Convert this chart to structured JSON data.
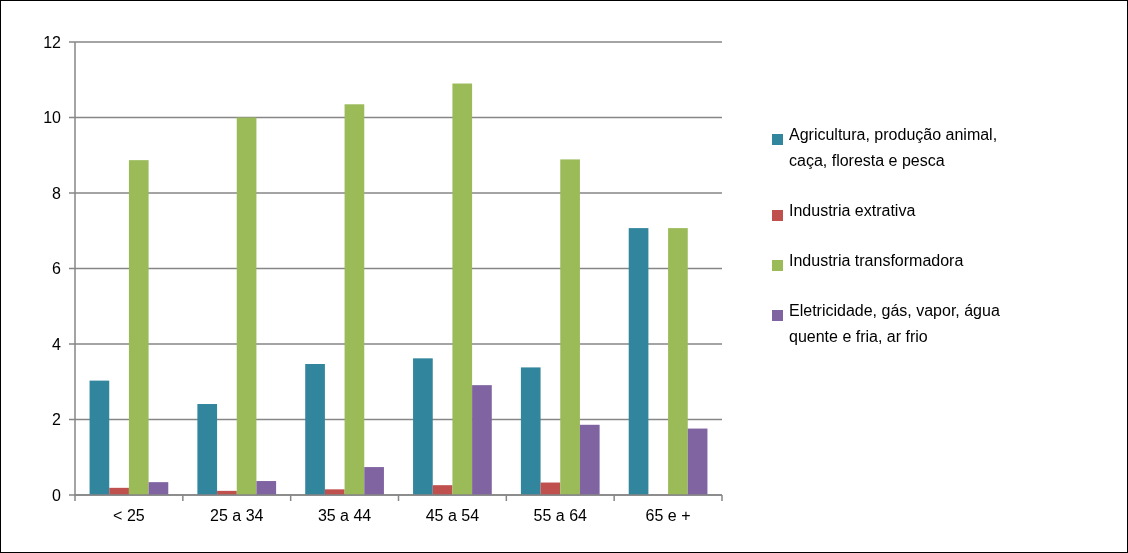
{
  "chart_data": {
    "type": "bar",
    "categories": [
      "< 25",
      "25 a 34",
      "35 a 44",
      "45 a 54",
      "55 a 64",
      "65 e +"
    ],
    "series": [
      {
        "name": "Agricultura, produção animal, caça, floresta e pesca",
        "color": "#31859c",
        "values": [
          3.03,
          2.41,
          3.47,
          3.62,
          3.38,
          7.07
        ]
      },
      {
        "name": "Industria extrativa",
        "color": "#c0504d",
        "values": [
          0.19,
          0.11,
          0.15,
          0.26,
          0.33,
          0
        ]
      },
      {
        "name": "Industria transformadora",
        "color": "#9bbb59",
        "values": [
          8.87,
          10.0,
          10.35,
          10.9,
          8.89,
          7.07
        ]
      },
      {
        "name": "Eletricidade, gás, vapor, água quente e fria, ar frio",
        "color": "#8064a2",
        "values": [
          0.34,
          0.37,
          0.74,
          2.91,
          1.86,
          1.76
        ]
      }
    ],
    "ylim": [
      0,
      12
    ],
    "yticks": [
      0,
      2,
      4,
      6,
      8,
      10,
      12
    ],
    "grid": "y",
    "legend": "right"
  }
}
